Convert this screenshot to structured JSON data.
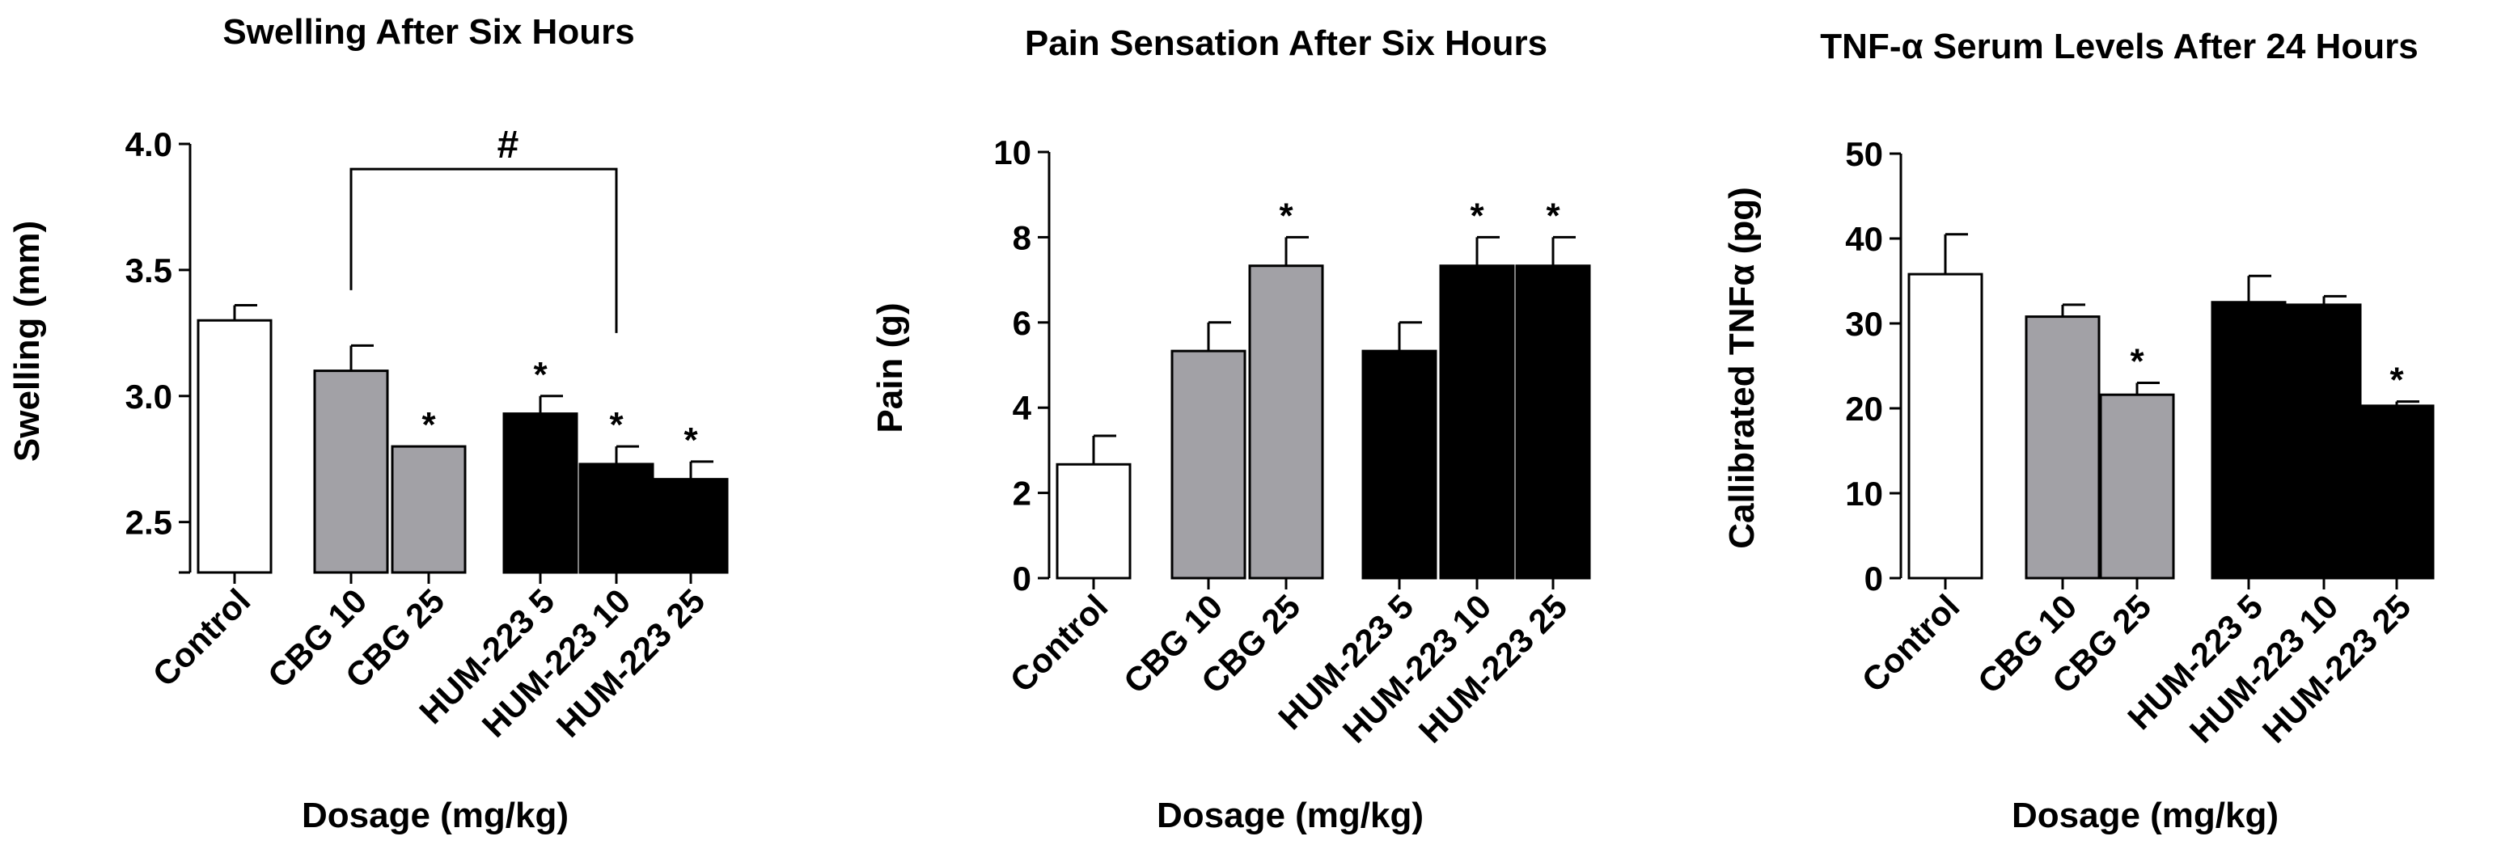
{
  "chart_data": [
    {
      "type": "bar",
      "title": "Swelling After Six Hours",
      "xlabel": "Dosage (mg/kg)",
      "ylabel": "Swelling (mm)",
      "ylim": [
        2.3,
        4.0
      ],
      "ytick_labels": [
        "2.5",
        "3.0",
        "3.5",
        "4.0"
      ],
      "ytick_values": [
        2.5,
        3.0,
        3.5,
        4.0
      ],
      "categories": [
        "Control",
        "CBG 10",
        "CBG 25",
        "HUM-223 5",
        "HUM-223 10",
        "HUM-223 25"
      ],
      "values": [
        3.3,
        3.1,
        2.8,
        2.93,
        2.73,
        2.67
      ],
      "errors": [
        0.06,
        0.1,
        0.0,
        0.07,
        0.07,
        0.07
      ],
      "colors": [
        "#ffffff",
        "#a2a1a6",
        "#a2a1a6",
        "#000000",
        "#000000",
        "#000000"
      ],
      "markers": [
        "",
        "",
        "*",
        "*",
        "*",
        "*"
      ],
      "bracket": {
        "label": "#",
        "from_index": 1,
        "to_index": 4
      }
    },
    {
      "type": "bar",
      "title": "Pain Sensation After Six Hours",
      "xlabel": "Dosage (mg/kg)",
      "ylabel": "Pain (g)",
      "ylim": [
        0,
        10
      ],
      "ytick_labels": [
        "0",
        "2",
        "4",
        "6",
        "8",
        "10"
      ],
      "ytick_values": [
        0,
        2,
        4,
        6,
        8,
        10
      ],
      "categories": [
        "Control",
        "CBG 10",
        "CBG 25",
        "HUM-223 5",
        "HUM-223 10",
        "HUM-223 25"
      ],
      "values": [
        2.67,
        5.33,
        7.33,
        5.33,
        7.33,
        7.33
      ],
      "errors": [
        0.67,
        0.67,
        0.67,
        0.67,
        0.67,
        0.67
      ],
      "colors": [
        "#ffffff",
        "#a2a1a6",
        "#a2a1a6",
        "#000000",
        "#000000",
        "#000000"
      ],
      "markers": [
        "",
        "",
        "*",
        "",
        "*",
        "*"
      ]
    },
    {
      "type": "bar",
      "title": "TNF-α Serum Levels After 24 Hours",
      "xlabel": "Dosage (mg/kg)",
      "ylabel": "Callibrated TNFα (pg)",
      "ylim": [
        0,
        50
      ],
      "ytick_labels": [
        "0",
        "10",
        "20",
        "30",
        "40",
        "50"
      ],
      "ytick_values": [
        0,
        10,
        20,
        30,
        40,
        50
      ],
      "categories": [
        "Control",
        "CBG 10",
        "CBG 25",
        "HUM-223 5",
        "HUM-223 10",
        "HUM-223 25"
      ],
      "values": [
        35.8,
        30.8,
        21.6,
        32.5,
        32.2,
        20.3
      ],
      "errors": [
        4.7,
        1.4,
        1.4,
        3.1,
        1.0,
        0.5
      ],
      "colors": [
        "#ffffff",
        "#a2a1a6",
        "#a2a1a6",
        "#000000",
        "#000000",
        "#000000"
      ],
      "markers": [
        "",
        "",
        "*",
        "",
        "",
        "*"
      ]
    }
  ]
}
